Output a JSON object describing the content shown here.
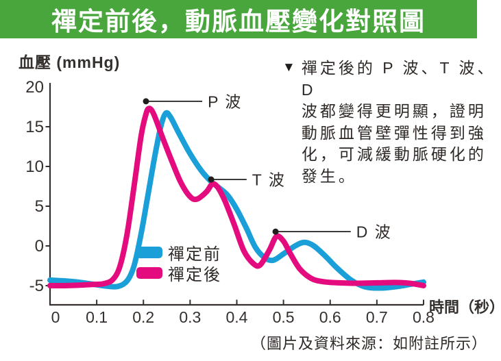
{
  "header": {
    "title": "禪定前後，動脈血壓變化對照圖",
    "bg_color": "#48a63c",
    "text_color": "#ffffff"
  },
  "chart_data": {
    "type": "line",
    "title": "禪定前後，動脈血壓變化對照圖",
    "y_axis": {
      "label": "血壓 (mmHg)",
      "range": [
        -5,
        20
      ],
      "ticks": [
        {
          "label": "20",
          "value": 20,
          "tick": false
        },
        {
          "label": "15",
          "value": 15,
          "tick": true
        },
        {
          "label": "10",
          "value": 10,
          "tick": true
        },
        {
          "label": "5",
          "value": 5,
          "tick": true
        },
        {
          "label": "0",
          "value": 0,
          "tick": true
        },
        {
          "label": "-5",
          "value": -5,
          "tick": true
        }
      ]
    },
    "x_axis": {
      "label": "時間（秒）",
      "range": [
        0,
        0.8
      ],
      "ticks": [
        {
          "label": "0",
          "value": 0,
          "tick": false
        },
        {
          "label": "0.1",
          "value": 0.1,
          "tick": true
        },
        {
          "label": "0.2",
          "value": 0.2,
          "tick": true
        },
        {
          "label": "0.3",
          "value": 0.3,
          "tick": true
        },
        {
          "label": "0.4",
          "value": 0.4,
          "tick": true
        },
        {
          "label": "0.5",
          "value": 0.5,
          "tick": true
        },
        {
          "label": "0.6",
          "value": 0.6,
          "tick": true
        },
        {
          "label": "0.7",
          "value": 0.7,
          "tick": true
        },
        {
          "label": "0.8",
          "value": 0.8,
          "tick": true
        }
      ]
    },
    "series": [
      {
        "name": "禪定前",
        "color": "#1b9fd8",
        "points": [
          [
            0,
            -4.3
          ],
          [
            0.03,
            -4.4
          ],
          [
            0.06,
            -4.55
          ],
          [
            0.09,
            -4.8
          ],
          [
            0.12,
            -5.05
          ],
          [
            0.145,
            -5.1
          ],
          [
            0.165,
            -4.4
          ],
          [
            0.18,
            -2.5
          ],
          [
            0.195,
            1.5
          ],
          [
            0.21,
            6.5
          ],
          [
            0.225,
            11.5
          ],
          [
            0.238,
            15.2
          ],
          [
            0.248,
            16.7
          ],
          [
            0.258,
            16.2
          ],
          [
            0.275,
            14.3
          ],
          [
            0.3,
            11.6
          ],
          [
            0.325,
            9.4
          ],
          [
            0.345,
            8.1
          ],
          [
            0.36,
            7.4
          ],
          [
            0.38,
            6.4
          ],
          [
            0.4,
            4.6
          ],
          [
            0.42,
            2.3
          ],
          [
            0.44,
            -0.2
          ],
          [
            0.46,
            -1.5
          ],
          [
            0.478,
            -1.8
          ],
          [
            0.5,
            -1.0
          ],
          [
            0.525,
            0.0
          ],
          [
            0.545,
            0.45
          ],
          [
            0.565,
            0.0
          ],
          [
            0.59,
            -1.3
          ],
          [
            0.615,
            -2.8
          ],
          [
            0.645,
            -4.3
          ],
          [
            0.675,
            -5.15
          ],
          [
            0.71,
            -5.3
          ],
          [
            0.745,
            -5.1
          ],
          [
            0.775,
            -4.8
          ],
          [
            0.8,
            -4.55
          ]
        ]
      },
      {
        "name": "禪定後",
        "color": "#e40b7e",
        "points": [
          [
            0,
            -5
          ],
          [
            0.03,
            -5
          ],
          [
            0.06,
            -4.95
          ],
          [
            0.09,
            -4.85
          ],
          [
            0.115,
            -4.75
          ],
          [
            0.135,
            -4.2
          ],
          [
            0.15,
            -2.5
          ],
          [
            0.165,
            1.5
          ],
          [
            0.18,
            7.5
          ],
          [
            0.195,
            13.8
          ],
          [
            0.205,
            16.5
          ],
          [
            0.212,
            17.3
          ],
          [
            0.222,
            16.6
          ],
          [
            0.24,
            13.8
          ],
          [
            0.26,
            10.8
          ],
          [
            0.28,
            8.0
          ],
          [
            0.3,
            6.2
          ],
          [
            0.315,
            5.9
          ],
          [
            0.335,
            6.8
          ],
          [
            0.348,
            7.8
          ],
          [
            0.36,
            7.3
          ],
          [
            0.375,
            5.6
          ],
          [
            0.395,
            2.6
          ],
          [
            0.415,
            -0.6
          ],
          [
            0.435,
            -2.2
          ],
          [
            0.45,
            -2.4
          ],
          [
            0.47,
            -0.5
          ],
          [
            0.485,
            1.2
          ],
          [
            0.5,
            0.6
          ],
          [
            0.515,
            -1.0
          ],
          [
            0.535,
            -2.9
          ],
          [
            0.56,
            -4.1
          ],
          [
            0.585,
            -4.5
          ],
          [
            0.62,
            -4.65
          ],
          [
            0.66,
            -4.7
          ],
          [
            0.7,
            -4.65
          ],
          [
            0.74,
            -4.6
          ],
          [
            0.77,
            -4.7
          ],
          [
            0.8,
            -5.0
          ]
        ]
      }
    ],
    "annotations": [
      {
        "label": "P 波",
        "t": 0.2055,
        "v": 18.2,
        "line_end_t": 0.326
      },
      {
        "label": "T 波",
        "t": 0.345,
        "v": 8.36,
        "line_end_t": 0.421
      },
      {
        "label": "D 波",
        "t": 0.483,
        "v": 1.8,
        "line_end_t": 0.644
      }
    ],
    "legend": {
      "position": "inside-bottom-left",
      "items": [
        {
          "label": "禪定前",
          "color": "#1b9fd8"
        },
        {
          "label": "禪定後",
          "color": "#e40b7e"
        }
      ]
    },
    "grid": false
  },
  "note": {
    "marker": "▼",
    "lines": [
      "禪定後的 P 波、T 波、D",
      "波都變得更明顯，證明",
      "動脈血管壁彈性得到強",
      "化，可減緩動脈硬化的",
      "發生。"
    ]
  },
  "caption": "（圖片及資料來源：如附註所示）"
}
